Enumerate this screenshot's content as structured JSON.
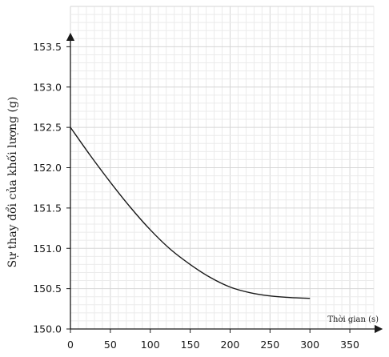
{
  "chart_data": {
    "type": "line",
    "title": "",
    "xlabel": "Thời gian (s)",
    "ylabel": "Sự thay đổi của khối lượng (g)",
    "xlim": [
      0,
      380
    ],
    "ylim": [
      150.0,
      154.0
    ],
    "x_ticks": [
      0,
      50,
      100,
      150,
      200,
      250,
      300,
      350
    ],
    "x_tick_labels": [
      "0",
      "50",
      "100",
      "150",
      "200",
      "250",
      "300",
      "350"
    ],
    "y_ticks": [
      150.0,
      150.5,
      151.0,
      151.5,
      152.0,
      152.5,
      153.0,
      153.5
    ],
    "y_tick_labels": [
      "150.0",
      "150.5",
      "151.0",
      "151.5",
      "152.0",
      "152.5",
      "153.0",
      "153.5"
    ],
    "grid": true,
    "series": [
      {
        "color": "#1a1a1a",
        "points": [
          [
            0,
            152.5
          ],
          [
            25,
            152.15
          ],
          [
            50,
            151.82
          ],
          [
            75,
            151.51
          ],
          [
            100,
            151.23
          ],
          [
            125,
            150.99
          ],
          [
            150,
            150.8
          ],
          [
            175,
            150.64
          ],
          [
            200,
            150.52
          ],
          [
            225,
            150.45
          ],
          [
            250,
            150.41
          ],
          [
            275,
            150.39
          ],
          [
            300,
            150.38
          ]
        ]
      }
    ]
  }
}
